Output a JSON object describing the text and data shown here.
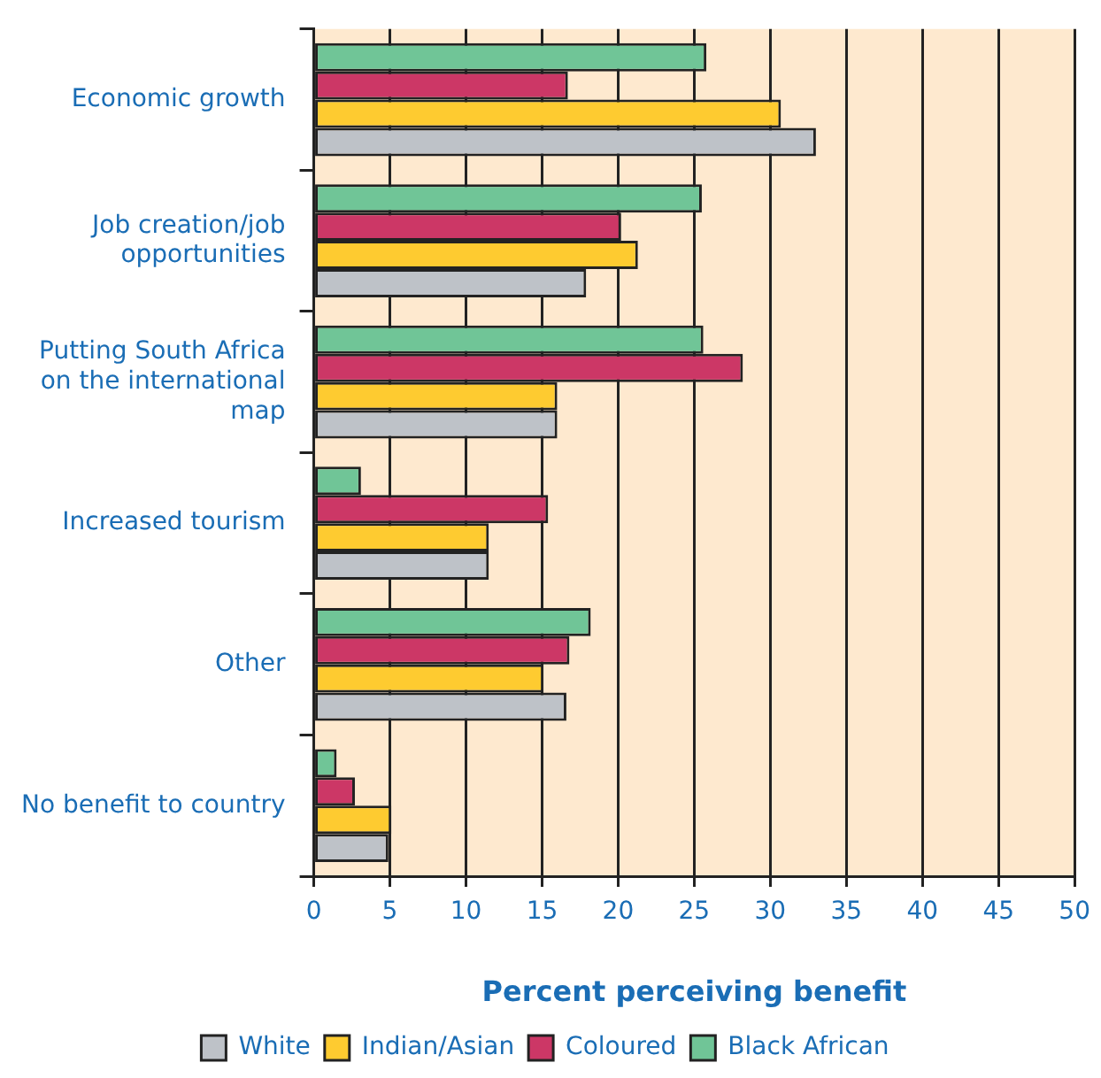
{
  "chart_data": {
    "type": "bar",
    "orientation": "horizontal",
    "xlabel": "Percent perceiving benefit",
    "categories": [
      "Economic growth",
      "Job creation/job opportunities",
      "Putting South Africa on the international map",
      "Increased tourism",
      "Other",
      "No benefit to country"
    ],
    "series": [
      {
        "name": "Black African",
        "color": "#70c597",
        "values": [
          25.8,
          25.5,
          25.6,
          3.1,
          18.2,
          1.5
        ]
      },
      {
        "name": "Coloured",
        "color": "#cc3766",
        "values": [
          16.7,
          20.2,
          28.2,
          15.4,
          16.8,
          2.7
        ]
      },
      {
        "name": "Indian/Asian",
        "color": "#fecb30",
        "values": [
          30.7,
          21.3,
          16.0,
          11.5,
          15.1,
          5.1
        ]
      },
      {
        "name": "White",
        "color": "#bec2c8",
        "values": [
          33.0,
          17.9,
          16.0,
          11.5,
          16.6,
          4.9
        ]
      }
    ],
    "xlim": [
      0,
      50
    ],
    "xticks": [
      0,
      5,
      10,
      15,
      20,
      25,
      30,
      35,
      40,
      45,
      50
    ],
    "grid": "x",
    "legend": "bottom"
  }
}
